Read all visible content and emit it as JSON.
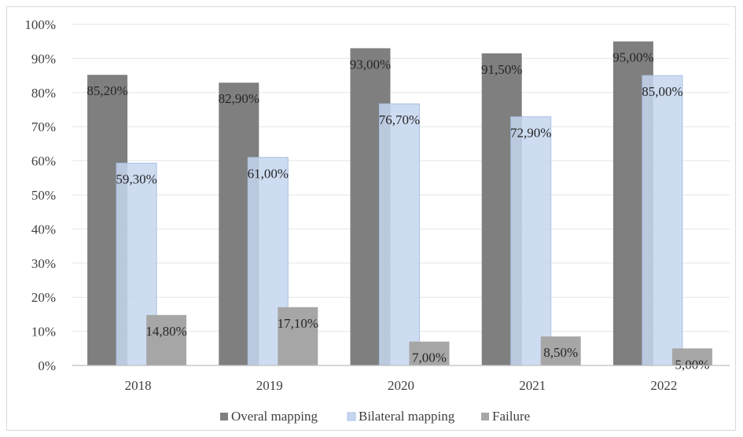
{
  "chart_data": {
    "type": "bar",
    "title": "",
    "xlabel": "",
    "ylabel": "",
    "categories": [
      "2018",
      "2019",
      "2020",
      "2021",
      "2022"
    ],
    "ylim": [
      0,
      100
    ],
    "y_ticks": [
      0,
      10,
      20,
      30,
      40,
      50,
      60,
      70,
      80,
      90,
      100
    ],
    "y_tick_labels": [
      "0%",
      "10%",
      "20%",
      "30%",
      "40%",
      "50%",
      "60%",
      "70%",
      "80%",
      "90%",
      "100%"
    ],
    "grid": true,
    "legend_position": "bottom",
    "series": [
      {
        "name": "Overal mapping",
        "color": "#7f7f7f",
        "values": [
          85.2,
          82.9,
          93.0,
          91.5,
          95.0
        ],
        "labels": [
          "85,20%",
          "82,90%",
          "93,00%",
          "91,50%",
          "95,00%"
        ]
      },
      {
        "name": "Bilateral mapping",
        "color": "#c5d6ef",
        "values": [
          59.3,
          61.0,
          76.7,
          72.9,
          85.0
        ],
        "labels": [
          "59,30%",
          "61,00%",
          "76,70%",
          "72,90%",
          "85,00%"
        ]
      },
      {
        "name": "Failure",
        "color": "#a6a6a6",
        "values": [
          14.8,
          17.1,
          7.0,
          8.5,
          5.0
        ],
        "labels": [
          "14,80%",
          "17,10%",
          "7,00%",
          "8,50%",
          "5,00%"
        ]
      }
    ]
  }
}
